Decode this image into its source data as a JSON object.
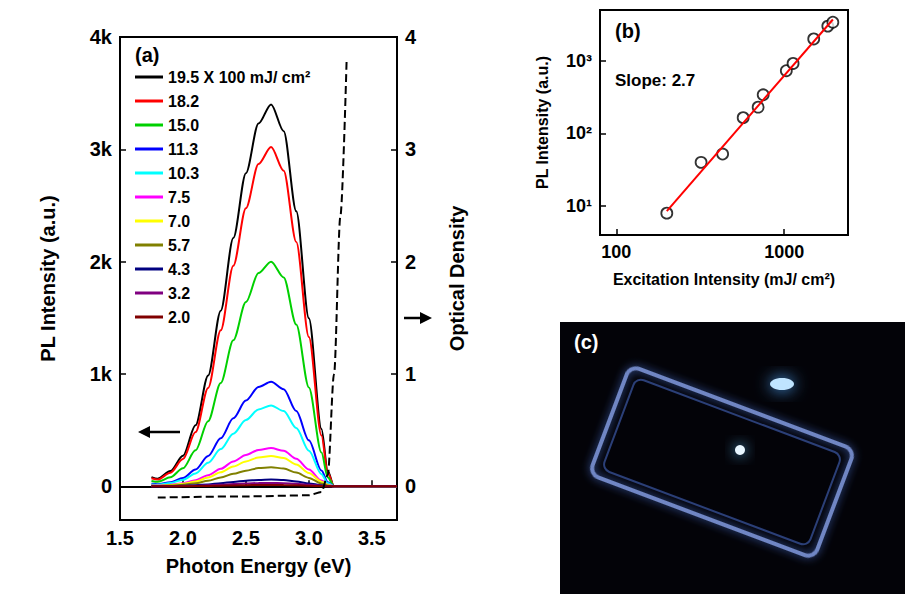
{
  "chart_data": [
    {
      "type": "line",
      "title": "(a)",
      "xlabel": "Photon Energy (eV)",
      "ylabel": "PL Intensity (a.u.)",
      "y2label": "Optical Density",
      "x": [
        1.75,
        1.8,
        1.9,
        2.0,
        2.1,
        2.2,
        2.3,
        2.4,
        2.5,
        2.6,
        2.7,
        2.8,
        2.9,
        3.0,
        3.1,
        3.15,
        3.2,
        3.7
      ],
      "xlim": [
        1.5,
        3.7
      ],
      "xticks": [
        1.5,
        {
          "value": 2,
          "label": "2.0"
        },
        2.5,
        {
          "value": 3,
          "label": "3.0"
        },
        3.5
      ],
      "ylim": [
        -300,
        4000
      ],
      "yticks": [
        0,
        {
          "value": 1000,
          "label": "1k"
        },
        {
          "value": 2000,
          "label": "2k"
        },
        {
          "value": 3000,
          "label": "3k"
        },
        {
          "value": 4000,
          "label": "4k"
        }
      ],
      "y2lim": [
        -0.3,
        4
      ],
      "y2ticks": [
        0,
        1,
        2,
        3,
        4
      ],
      "grid": false,
      "legend": "upper left",
      "series": [
        {
          "name": "19.5 X 100 mJ/ cm²",
          "color": "#000000",
          "values": [
            82,
            68,
            136,
            272,
            544,
            986,
            1564,
            2210,
            2788,
            3230,
            3400,
            3162,
            2448,
            1496,
            510,
            136,
            0,
            0
          ]
        },
        {
          "name": "18.2",
          "color": "#ff0000",
          "values": [
            72,
            60,
            121,
            242,
            483,
            876,
            1389,
            1963,
            2476,
            2869,
            3020,
            2809,
            2174,
            1329,
            453,
            121,
            0,
            0
          ]
        },
        {
          "name": "15.0",
          "color": "#00d000",
          "values": [
            48,
            40,
            80,
            160,
            320,
            580,
            920,
            1300,
            1640,
            1900,
            2000,
            1860,
            1440,
            880,
            300,
            80,
            0,
            0
          ]
        },
        {
          "name": "11.3",
          "color": "#0000ff",
          "values": [
            22,
            19,
            37,
            74,
            149,
            270,
            428,
            605,
            763,
            884,
            930,
            865,
            670,
            409,
            140,
            37,
            0,
            0
          ]
        },
        {
          "name": "10.3",
          "color": "#00ffff",
          "values": [
            17,
            14,
            29,
            58,
            115,
            209,
            331,
            468,
            590,
            684,
            720,
            670,
            518,
            317,
            108,
            29,
            0,
            0
          ]
        },
        {
          "name": "7.5",
          "color": "#ff00ff",
          "values": [
            8,
            7,
            14,
            27,
            54,
            99,
            156,
            221,
            279,
            323,
            340,
            316,
            245,
            150,
            51,
            14,
            0,
            0
          ]
        },
        {
          "name": "7.0",
          "color": "#ffff00",
          "values": [
            6,
            5,
            11,
            22,
            43,
            78,
            124,
            176,
            221,
            257,
            270,
            251,
            194,
            119,
            41,
            11,
            0,
            0
          ]
        },
        {
          "name": "5.7",
          "color": "#808000",
          "values": [
            4,
            3,
            7,
            14,
            27,
            49,
            78,
            111,
            139,
            162,
            170,
            158,
            122,
            75,
            26,
            7,
            0,
            0
          ]
        },
        {
          "name": "4.3",
          "color": "#000080",
          "values": [
            1,
            1,
            2,
            5,
            10,
            17,
            28,
            39,
            49,
            57,
            60,
            56,
            43,
            26,
            9,
            2,
            0,
            0
          ]
        },
        {
          "name": "3.2",
          "color": "#800080",
          "values": [
            1,
            1,
            1,
            2,
            5,
            9,
            14,
            20,
            25,
            29,
            30,
            28,
            22,
            13,
            5,
            1,
            0,
            0
          ]
        },
        {
          "name": "2.0",
          "color": "#800000",
          "values": [
            0,
            0,
            0,
            1,
            2,
            3,
            6,
            8,
            10,
            11,
            12,
            11,
            9,
            5,
            2,
            0,
            0,
            0
          ]
        },
        {
          "axis": "y2",
          "color": "#000000",
          "line_style": "dashed",
          "x": [
            1.8,
            2.5,
            3.0,
            3.1,
            3.15,
            3.2,
            3.25,
            3.3
          ],
          "values": [
            -0.1,
            -0.09,
            -0.08,
            -0.05,
            0.1,
            1.0,
            2.4,
            3.8
          ]
        }
      ]
    },
    {
      "type": "scatter",
      "title": "(b)",
      "xlabel": "Excitation Intensity (mJ/ cm²)",
      "ylabel": "PL Intensity (a.u.)",
      "annotations": [
        "Slope: 2.7"
      ],
      "log": true,
      "x": [
        200,
        320,
        430,
        570,
        700,
        750,
        1030,
        1130,
        1500,
        1820,
        1950
      ],
      "xlim": [
        80,
        2400
      ],
      "xticks": [
        100,
        1000
      ],
      "ylim": [
        4,
        5000
      ],
      "yticks": [
        {
          "value": 10,
          "label": "10¹"
        },
        {
          "value": 100,
          "label": "10²"
        },
        {
          "value": 1000,
          "label": "10³"
        }
      ],
      "grid": false,
      "series": [
        {
          "type": "scatter",
          "color": "#000000",
          "marker": "circle-open",
          "values": [
            8,
            40,
            52,
            165,
            230,
            340,
            730,
            920,
            2000,
            3000,
            3400
          ]
        },
        {
          "type": "line",
          "color": "#ff0000",
          "line_style": "solid",
          "x": [
            200,
            1950
          ],
          "values": [
            8.5,
            3700
          ]
        }
      ]
    }
  ],
  "photo": {
    "label": "(c)"
  }
}
